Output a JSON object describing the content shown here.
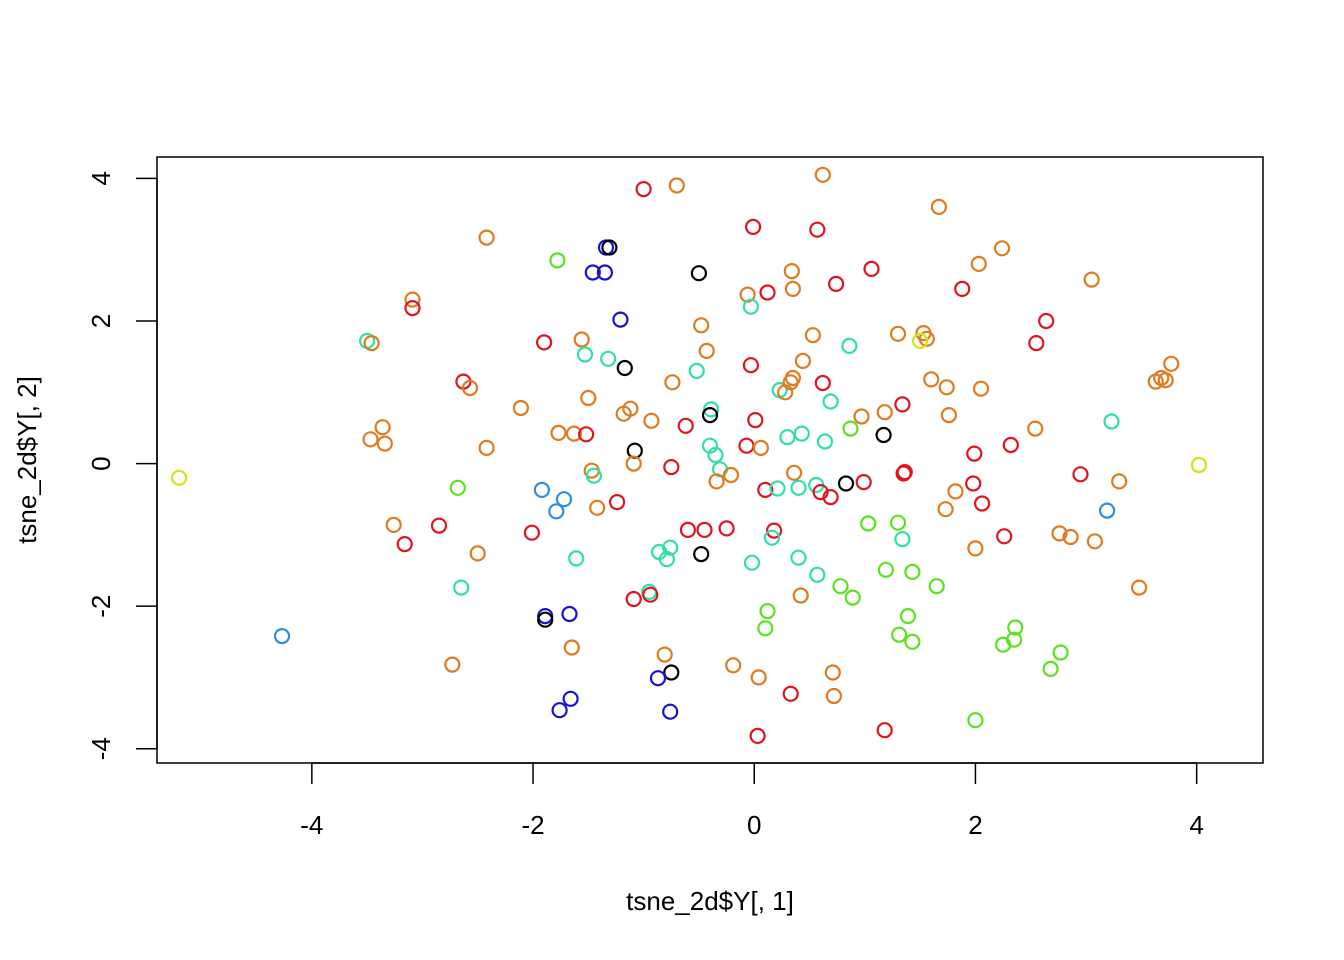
{
  "chart_data": {
    "type": "scatter",
    "title": "",
    "xlabel": "tsne_2d$Y[, 1]",
    "ylabel": "tsne_2d$Y[, 2]",
    "xlim": [
      -5.4,
      4.6
    ],
    "ylim": [
      -4.2,
      4.3
    ],
    "xticks": [
      -4,
      -2,
      0,
      2,
      4
    ],
    "yticks": [
      -4,
      -2,
      0,
      2,
      4
    ],
    "xtick_labels": [
      "-4",
      "-2",
      "0",
      "2",
      "4"
    ],
    "ytick_labels": [
      "-4",
      "-2",
      "0",
      "2",
      "4"
    ],
    "grid": false,
    "legend": "none",
    "marker": "open-circle",
    "colors": {
      "red": "#E0141E",
      "orange": "#E07A1E",
      "yellow": "#D8E010",
      "green": "#5AE21E",
      "teal": "#2EE0A6",
      "lightblue": "#2D8EE0",
      "blue": "#1414D2",
      "black": "#000000"
    },
    "points": [
      [
        -1.0,
        3.85,
        "red"
      ],
      [
        -0.7,
        3.9,
        "orange"
      ],
      [
        0.62,
        4.05,
        "orange"
      ],
      [
        1.67,
        3.6,
        "orange"
      ],
      [
        -2.42,
        3.17,
        "orange"
      ],
      [
        -1.34,
        3.03,
        "blue"
      ],
      [
        -1.31,
        3.03,
        "black"
      ],
      [
        -0.01,
        3.32,
        "red"
      ],
      [
        0.57,
        3.28,
        "red"
      ],
      [
        2.24,
        3.02,
        "orange"
      ],
      [
        -1.78,
        2.85,
        "green"
      ],
      [
        -1.46,
        2.68,
        "blue"
      ],
      [
        -1.35,
        2.68,
        "blue"
      ],
      [
        -0.5,
        2.67,
        "black"
      ],
      [
        0.34,
        2.7,
        "orange"
      ],
      [
        1.06,
        2.73,
        "red"
      ],
      [
        2.03,
        2.8,
        "orange"
      ],
      [
        0.74,
        2.52,
        "red"
      ],
      [
        0.35,
        2.45,
        "orange"
      ],
      [
        0.12,
        2.4,
        "red"
      ],
      [
        -0.06,
        2.37,
        "orange"
      ],
      [
        1.88,
        2.45,
        "red"
      ],
      [
        3.05,
        2.58,
        "orange"
      ],
      [
        -3.09,
        2.3,
        "orange"
      ],
      [
        -3.09,
        2.18,
        "red"
      ],
      [
        -0.03,
        2.2,
        "teal"
      ],
      [
        -1.21,
        2.02,
        "blue"
      ],
      [
        -0.48,
        1.94,
        "orange"
      ],
      [
        2.64,
        2.0,
        "red"
      ],
      [
        -3.5,
        1.72,
        "teal"
      ],
      [
        -3.46,
        1.69,
        "orange"
      ],
      [
        -1.9,
        1.7,
        "red"
      ],
      [
        -1.56,
        1.74,
        "orange"
      ],
      [
        0.53,
        1.8,
        "orange"
      ],
      [
        0.86,
        1.65,
        "teal"
      ],
      [
        1.3,
        1.82,
        "orange"
      ],
      [
        1.53,
        1.83,
        "orange"
      ],
      [
        1.56,
        1.75,
        "orange"
      ],
      [
        1.5,
        1.72,
        "yellow"
      ],
      [
        2.55,
        1.69,
        "red"
      ],
      [
        -1.53,
        1.53,
        "teal"
      ],
      [
        -1.32,
        1.47,
        "teal"
      ],
      [
        -0.43,
        1.58,
        "orange"
      ],
      [
        -1.17,
        1.34,
        "black"
      ],
      [
        -0.52,
        1.3,
        "teal"
      ],
      [
        -0.03,
        1.38,
        "red"
      ],
      [
        0.35,
        1.2,
        "orange"
      ],
      [
        0.44,
        1.44,
        "orange"
      ],
      [
        0.62,
        1.13,
        "red"
      ],
      [
        -0.74,
        1.14,
        "orange"
      ],
      [
        -2.63,
        1.15,
        "red"
      ],
      [
        -2.57,
        1.06,
        "orange"
      ],
      [
        0.23,
        1.03,
        "teal"
      ],
      [
        0.28,
        1.0,
        "orange"
      ],
      [
        0.33,
        1.14,
        "orange"
      ],
      [
        1.6,
        1.18,
        "orange"
      ],
      [
        1.74,
        1.07,
        "orange"
      ],
      [
        2.05,
        1.05,
        "orange"
      ],
      [
        3.63,
        1.15,
        "orange"
      ],
      [
        3.68,
        1.2,
        "orange"
      ],
      [
        3.72,
        1.17,
        "orange"
      ],
      [
        3.77,
        1.4,
        "orange"
      ],
      [
        -1.5,
        0.92,
        "orange"
      ],
      [
        -2.11,
        0.78,
        "orange"
      ],
      [
        -1.18,
        0.7,
        "orange"
      ],
      [
        -1.12,
        0.77,
        "orange"
      ],
      [
        -0.39,
        0.76,
        "teal"
      ],
      [
        -0.4,
        0.68,
        "black"
      ],
      [
        0.69,
        0.87,
        "teal"
      ],
      [
        0.97,
        0.66,
        "orange"
      ],
      [
        1.18,
        0.72,
        "orange"
      ],
      [
        1.34,
        0.83,
        "red"
      ],
      [
        1.76,
        0.68,
        "orange"
      ],
      [
        -0.93,
        0.6,
        "orange"
      ],
      [
        -0.62,
        0.53,
        "red"
      ],
      [
        0.01,
        0.61,
        "red"
      ],
      [
        0.3,
        0.37,
        "teal"
      ],
      [
        0.43,
        0.42,
        "teal"
      ],
      [
        0.87,
        0.49,
        "green"
      ],
      [
        1.17,
        0.4,
        "black"
      ],
      [
        2.54,
        0.49,
        "orange"
      ],
      [
        3.23,
        0.59,
        "teal"
      ],
      [
        -3.36,
        0.51,
        "orange"
      ],
      [
        -3.47,
        0.34,
        "orange"
      ],
      [
        -3.34,
        0.28,
        "orange"
      ],
      [
        -1.77,
        0.43,
        "orange"
      ],
      [
        -1.63,
        0.42,
        "orange"
      ],
      [
        -1.52,
        0.41,
        "red"
      ],
      [
        -1.08,
        0.18,
        "black"
      ],
      [
        -1.09,
        0.0,
        "orange"
      ],
      [
        -0.4,
        0.25,
        "teal"
      ],
      [
        -0.35,
        0.12,
        "teal"
      ],
      [
        -0.07,
        0.25,
        "red"
      ],
      [
        0.06,
        0.22,
        "orange"
      ],
      [
        0.64,
        0.31,
        "teal"
      ],
      [
        -2.42,
        0.22,
        "orange"
      ],
      [
        1.99,
        0.14,
        "red"
      ],
      [
        2.32,
        0.26,
        "red"
      ],
      [
        -0.75,
        -0.05,
        "red"
      ],
      [
        -0.31,
        -0.08,
        "teal"
      ],
      [
        -0.21,
        -0.16,
        "orange"
      ],
      [
        -0.34,
        -0.25,
        "orange"
      ],
      [
        0.36,
        -0.13,
        "orange"
      ],
      [
        1.36,
        -0.12,
        "red"
      ],
      [
        1.35,
        -0.14,
        "red"
      ],
      [
        4.02,
        -0.02,
        "yellow"
      ],
      [
        -5.2,
        -0.2,
        "yellow"
      ],
      [
        -1.47,
        -0.1,
        "orange"
      ],
      [
        -1.45,
        -0.17,
        "teal"
      ],
      [
        0.1,
        -0.37,
        "red"
      ],
      [
        0.21,
        -0.35,
        "teal"
      ],
      [
        0.4,
        -0.34,
        "teal"
      ],
      [
        0.56,
        -0.3,
        "teal"
      ],
      [
        0.6,
        -0.4,
        "red"
      ],
      [
        0.69,
        -0.47,
        "red"
      ],
      [
        0.83,
        -0.28,
        "black"
      ],
      [
        0.99,
        -0.26,
        "red"
      ],
      [
        1.82,
        -0.39,
        "orange"
      ],
      [
        1.98,
        -0.28,
        "red"
      ],
      [
        2.95,
        -0.15,
        "red"
      ],
      [
        3.3,
        -0.25,
        "orange"
      ],
      [
        -1.92,
        -0.37,
        "lightblue"
      ],
      [
        -1.72,
        -0.5,
        "lightblue"
      ],
      [
        -1.79,
        -0.67,
        "lightblue"
      ],
      [
        -1.42,
        -0.62,
        "orange"
      ],
      [
        -1.24,
        -0.54,
        "red"
      ],
      [
        1.73,
        -0.64,
        "orange"
      ],
      [
        2.06,
        -0.56,
        "red"
      ],
      [
        3.19,
        -0.66,
        "lightblue"
      ],
      [
        -2.68,
        -0.34,
        "green"
      ],
      [
        -3.26,
        -0.86,
        "orange"
      ],
      [
        -3.16,
        -1.13,
        "red"
      ],
      [
        -2.85,
        -0.87,
        "red"
      ],
      [
        -2.01,
        -0.97,
        "red"
      ],
      [
        -0.6,
        -0.93,
        "red"
      ],
      [
        -0.45,
        -0.93,
        "red"
      ],
      [
        -0.25,
        -0.91,
        "red"
      ],
      [
        0.18,
        -0.94,
        "red"
      ],
      [
        0.16,
        -1.04,
        "teal"
      ],
      [
        1.03,
        -0.84,
        "green"
      ],
      [
        1.3,
        -0.83,
        "green"
      ],
      [
        1.34,
        -1.06,
        "teal"
      ],
      [
        2.26,
        -1.02,
        "red"
      ],
      [
        2.76,
        -0.98,
        "orange"
      ],
      [
        2.86,
        -1.03,
        "orange"
      ],
      [
        3.08,
        -1.09,
        "orange"
      ],
      [
        2.0,
        -1.19,
        "orange"
      ],
      [
        -2.5,
        -1.26,
        "orange"
      ],
      [
        -1.61,
        -1.33,
        "teal"
      ],
      [
        -0.86,
        -1.24,
        "teal"
      ],
      [
        -0.76,
        -1.18,
        "teal"
      ],
      [
        -0.79,
        -1.34,
        "teal"
      ],
      [
        -0.48,
        -1.27,
        "black"
      ],
      [
        -0.02,
        -1.39,
        "teal"
      ],
      [
        0.4,
        -1.32,
        "teal"
      ],
      [
        1.19,
        -1.49,
        "green"
      ],
      [
        1.43,
        -1.52,
        "green"
      ],
      [
        0.57,
        -1.56,
        "teal"
      ],
      [
        -2.65,
        -1.74,
        "teal"
      ],
      [
        0.78,
        -1.72,
        "green"
      ],
      [
        1.65,
        -1.72,
        "green"
      ],
      [
        3.48,
        -1.74,
        "orange"
      ],
      [
        -1.09,
        -1.9,
        "red"
      ],
      [
        -0.95,
        -1.8,
        "teal"
      ],
      [
        -0.94,
        -1.84,
        "red"
      ],
      [
        0.42,
        -1.85,
        "orange"
      ],
      [
        0.89,
        -1.88,
        "green"
      ],
      [
        -1.89,
        -2.14,
        "blue"
      ],
      [
        -1.89,
        -2.19,
        "black"
      ],
      [
        -1.67,
        -2.11,
        "blue"
      ],
      [
        0.12,
        -2.07,
        "green"
      ],
      [
        0.1,
        -2.31,
        "green"
      ],
      [
        1.39,
        -2.14,
        "green"
      ],
      [
        2.36,
        -2.3,
        "green"
      ],
      [
        -4.27,
        -2.42,
        "lightblue"
      ],
      [
        1.31,
        -2.4,
        "green"
      ],
      [
        1.43,
        -2.5,
        "green"
      ],
      [
        2.35,
        -2.47,
        "green"
      ],
      [
        2.25,
        -2.54,
        "green"
      ],
      [
        -1.65,
        -2.58,
        "orange"
      ],
      [
        -0.81,
        -2.68,
        "orange"
      ],
      [
        -0.19,
        -2.83,
        "orange"
      ],
      [
        0.71,
        -2.93,
        "orange"
      ],
      [
        2.77,
        -2.65,
        "green"
      ],
      [
        2.68,
        -2.88,
        "green"
      ],
      [
        -2.73,
        -2.82,
        "orange"
      ],
      [
        -0.75,
        -2.93,
        "black"
      ],
      [
        -0.87,
        -3.01,
        "blue"
      ],
      [
        0.04,
        -3.0,
        "orange"
      ],
      [
        0.33,
        -3.23,
        "red"
      ],
      [
        0.72,
        -3.26,
        "orange"
      ],
      [
        -1.66,
        -3.3,
        "blue"
      ],
      [
        -1.76,
        -3.46,
        "blue"
      ],
      [
        -0.76,
        -3.48,
        "blue"
      ],
      [
        2.0,
        -3.6,
        "green"
      ],
      [
        1.18,
        -3.74,
        "red"
      ],
      [
        0.03,
        -3.82,
        "red"
      ]
    ]
  }
}
